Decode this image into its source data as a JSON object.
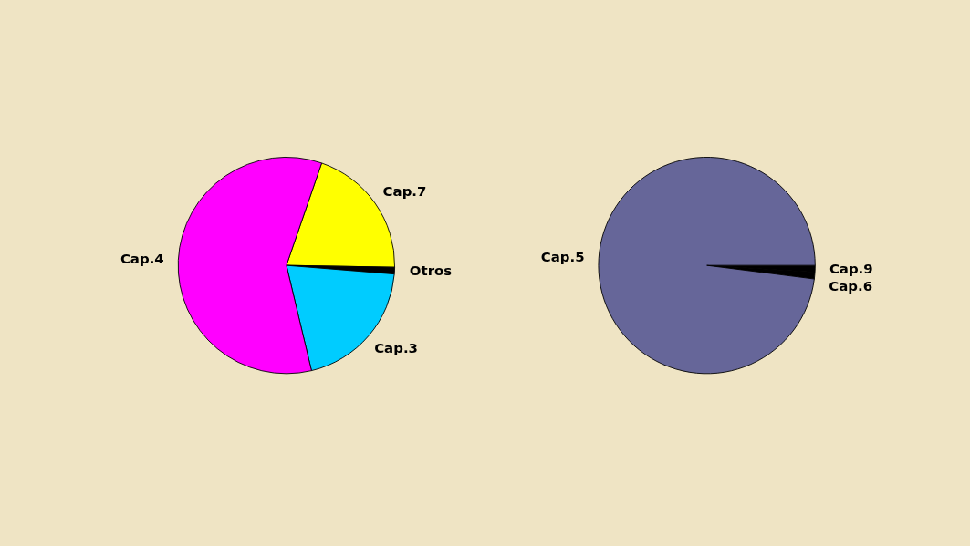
{
  "chart_data": [
    {
      "type": "pie",
      "categories": [
        "Cap.7",
        "Otros",
        "Cap.3",
        "Cap.4"
      ],
      "values": [
        20,
        1,
        20,
        59
      ],
      "colors": [
        "#ffff00",
        "#000000",
        "#00ccff",
        "#ff00ff"
      ]
    },
    {
      "type": "pie",
      "categories": [
        "Cap.9",
        "Cap.6",
        "Cap.5"
      ],
      "values": [
        1,
        1,
        98
      ],
      "colors": [
        "#000000",
        "#000000",
        "#666699"
      ]
    }
  ]
}
